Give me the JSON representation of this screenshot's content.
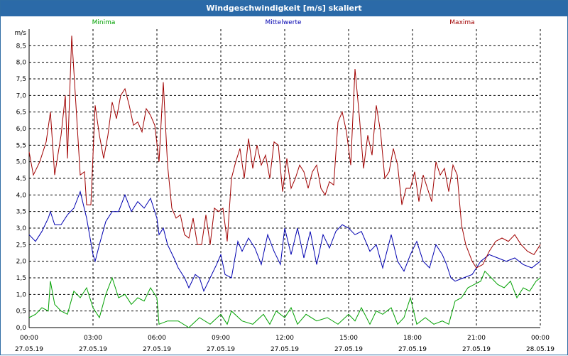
{
  "window": {
    "title": "Windgeschwindigkeit [m/s] skaliert"
  },
  "chart_data": {
    "type": "line",
    "title": "Windgeschwindigkeit [m/s] skaliert",
    "ylabel": "m/s",
    "ylim": [
      0,
      9
    ],
    "xlim": [
      0,
      24
    ],
    "y_ticks": [
      "0,0",
      "0,5",
      "1,0",
      "1,5",
      "2,0",
      "2,5",
      "3,0",
      "3,5",
      "4,0",
      "4,5",
      "5,0",
      "5,5",
      "6,0",
      "6,5",
      "7,0",
      "7,5",
      "8,0",
      "8,5"
    ],
    "x_ticks": [
      {
        "time": "00:00",
        "date": "27.05.19"
      },
      {
        "time": "03:00",
        "date": "27.05.19"
      },
      {
        "time": "06:00",
        "date": "27.05.19"
      },
      {
        "time": "09:00",
        "date": "27.05.19"
      },
      {
        "time": "12:00",
        "date": "27.05.19"
      },
      {
        "time": "15:00",
        "date": "27.05.19"
      },
      {
        "time": "18:00",
        "date": "27.05.19"
      },
      {
        "time": "21:00",
        "date": "27.05.19"
      },
      {
        "time": "00:00",
        "date": "28.05.19"
      }
    ],
    "grid": true,
    "legend_position": "top",
    "series": [
      {
        "name": "Minima",
        "color": "#00a000",
        "points": [
          [
            0,
            0.3
          ],
          [
            0.3,
            0.4
          ],
          [
            0.6,
            0.6
          ],
          [
            0.9,
            0.5
          ],
          [
            1.0,
            1.4
          ],
          [
            1.2,
            0.7
          ],
          [
            1.5,
            0.5
          ],
          [
            1.8,
            0.4
          ],
          [
            2.1,
            1.1
          ],
          [
            2.4,
            0.9
          ],
          [
            2.7,
            1.2
          ],
          [
            3.0,
            0.6
          ],
          [
            3.3,
            0.3
          ],
          [
            3.6,
            1.0
          ],
          [
            3.9,
            1.5
          ],
          [
            4.2,
            0.9
          ],
          [
            4.5,
            1.0
          ],
          [
            4.8,
            0.7
          ],
          [
            5.1,
            0.9
          ],
          [
            5.4,
            0.8
          ],
          [
            5.7,
            1.2
          ],
          [
            6.0,
            0.9
          ],
          [
            6.1,
            0.1
          ],
          [
            6.5,
            0.2
          ],
          [
            7.0,
            0.2
          ],
          [
            7.5,
            0.0
          ],
          [
            8.0,
            0.3
          ],
          [
            8.5,
            0.1
          ],
          [
            9.0,
            0.4
          ],
          [
            9.3,
            0.1
          ],
          [
            9.5,
            0.5
          ],
          [
            10.0,
            0.2
          ],
          [
            10.5,
            0.1
          ],
          [
            11.0,
            0.4
          ],
          [
            11.3,
            0.1
          ],
          [
            11.6,
            0.5
          ],
          [
            12.0,
            0.3
          ],
          [
            12.3,
            0.6
          ],
          [
            12.6,
            0.1
          ],
          [
            13.0,
            0.4
          ],
          [
            13.5,
            0.2
          ],
          [
            14.0,
            0.3
          ],
          [
            14.5,
            0.1
          ],
          [
            15.0,
            0.4
          ],
          [
            15.3,
            0.2
          ],
          [
            15.6,
            0.6
          ],
          [
            16.0,
            0.1
          ],
          [
            16.3,
            0.5
          ],
          [
            16.6,
            0.4
          ],
          [
            17.0,
            0.6
          ],
          [
            17.3,
            0.1
          ],
          [
            17.6,
            0.3
          ],
          [
            17.9,
            0.9
          ],
          [
            18.2,
            0.1
          ],
          [
            18.6,
            0.3
          ],
          [
            19.0,
            0.1
          ],
          [
            19.4,
            0.2
          ],
          [
            19.7,
            0.1
          ],
          [
            20.0,
            0.8
          ],
          [
            20.3,
            0.9
          ],
          [
            20.6,
            1.2
          ],
          [
            20.9,
            1.3
          ],
          [
            21.2,
            1.4
          ],
          [
            21.4,
            1.7
          ],
          [
            21.7,
            1.5
          ],
          [
            22.0,
            1.3
          ],
          [
            22.3,
            1.2
          ],
          [
            22.6,
            1.4
          ],
          [
            22.9,
            0.9
          ],
          [
            23.2,
            1.2
          ],
          [
            23.5,
            1.1
          ],
          [
            23.8,
            1.4
          ],
          [
            24.0,
            1.5
          ]
        ]
      },
      {
        "name": "Mittelwerte",
        "color": "#0000b0",
        "points": [
          [
            0,
            2.8
          ],
          [
            0.3,
            2.6
          ],
          [
            0.6,
            2.9
          ],
          [
            0.9,
            3.3
          ],
          [
            1.0,
            3.5
          ],
          [
            1.2,
            3.1
          ],
          [
            1.5,
            3.1
          ],
          [
            1.8,
            3.4
          ],
          [
            2.1,
            3.6
          ],
          [
            2.4,
            4.1
          ],
          [
            2.7,
            3.3
          ],
          [
            3.0,
            2.2
          ],
          [
            3.1,
            2.0
          ],
          [
            3.3,
            2.5
          ],
          [
            3.6,
            3.2
          ],
          [
            3.9,
            3.5
          ],
          [
            4.2,
            3.5
          ],
          [
            4.5,
            4.0
          ],
          [
            4.8,
            3.5
          ],
          [
            5.1,
            3.8
          ],
          [
            5.4,
            3.6
          ],
          [
            5.7,
            3.9
          ],
          [
            6.0,
            3.3
          ],
          [
            6.1,
            2.8
          ],
          [
            6.3,
            3.0
          ],
          [
            6.5,
            2.5
          ],
          [
            6.8,
            2.1
          ],
          [
            7.0,
            1.8
          ],
          [
            7.3,
            1.5
          ],
          [
            7.5,
            1.2
          ],
          [
            7.8,
            1.6
          ],
          [
            8.0,
            1.5
          ],
          [
            8.2,
            1.1
          ],
          [
            8.5,
            1.5
          ],
          [
            8.8,
            1.9
          ],
          [
            9.0,
            2.2
          ],
          [
            9.2,
            1.6
          ],
          [
            9.5,
            1.5
          ],
          [
            9.8,
            2.6
          ],
          [
            10.0,
            2.3
          ],
          [
            10.3,
            2.7
          ],
          [
            10.6,
            2.4
          ],
          [
            10.9,
            1.9
          ],
          [
            11.2,
            2.8
          ],
          [
            11.5,
            2.3
          ],
          [
            11.8,
            1.9
          ],
          [
            12.0,
            3.0
          ],
          [
            12.3,
            2.2
          ],
          [
            12.6,
            3.0
          ],
          [
            12.9,
            2.1
          ],
          [
            13.2,
            2.9
          ],
          [
            13.5,
            1.9
          ],
          [
            13.8,
            2.8
          ],
          [
            14.1,
            2.4
          ],
          [
            14.4,
            2.9
          ],
          [
            14.7,
            3.1
          ],
          [
            15.0,
            3.0
          ],
          [
            15.3,
            2.8
          ],
          [
            15.6,
            2.9
          ],
          [
            16.0,
            2.3
          ],
          [
            16.3,
            2.5
          ],
          [
            16.6,
            1.8
          ],
          [
            17.0,
            2.8
          ],
          [
            17.3,
            2.0
          ],
          [
            17.6,
            1.7
          ],
          [
            17.9,
            2.2
          ],
          [
            18.2,
            2.6
          ],
          [
            18.5,
            2.0
          ],
          [
            18.8,
            1.8
          ],
          [
            19.1,
            2.5
          ],
          [
            19.4,
            2.2
          ],
          [
            19.6,
            1.9
          ],
          [
            19.8,
            1.5
          ],
          [
            20.0,
            1.4
          ],
          [
            20.4,
            1.5
          ],
          [
            20.8,
            1.6
          ],
          [
            21.2,
            2.0
          ],
          [
            21.6,
            2.2
          ],
          [
            22.0,
            2.1
          ],
          [
            22.4,
            2.0
          ],
          [
            22.8,
            2.1
          ],
          [
            23.2,
            1.9
          ],
          [
            23.6,
            1.8
          ],
          [
            24.0,
            2.0
          ]
        ]
      },
      {
        "name": "Maxima",
        "color": "#a00000",
        "points": [
          [
            0,
            5.3
          ],
          [
            0.2,
            4.6
          ],
          [
            0.5,
            5.0
          ],
          [
            0.8,
            5.6
          ],
          [
            1.0,
            6.5
          ],
          [
            1.2,
            4.6
          ],
          [
            1.5,
            5.8
          ],
          [
            1.7,
            7.0
          ],
          [
            1.8,
            5.1
          ],
          [
            2.0,
            8.8
          ],
          [
            2.2,
            6.7
          ],
          [
            2.4,
            4.6
          ],
          [
            2.6,
            4.7
          ],
          [
            2.7,
            3.7
          ],
          [
            2.9,
            3.7
          ],
          [
            3.1,
            6.7
          ],
          [
            3.3,
            5.8
          ],
          [
            3.5,
            5.1
          ],
          [
            3.7,
            5.8
          ],
          [
            3.9,
            6.8
          ],
          [
            4.1,
            6.3
          ],
          [
            4.3,
            7.0
          ],
          [
            4.5,
            7.2
          ],
          [
            4.7,
            6.7
          ],
          [
            4.9,
            6.1
          ],
          [
            5.1,
            6.2
          ],
          [
            5.3,
            5.9
          ],
          [
            5.5,
            6.6
          ],
          [
            5.7,
            6.4
          ],
          [
            5.9,
            6.1
          ],
          [
            6.1,
            5.0
          ],
          [
            6.3,
            7.4
          ],
          [
            6.5,
            4.9
          ],
          [
            6.7,
            3.6
          ],
          [
            6.9,
            3.3
          ],
          [
            7.1,
            3.4
          ],
          [
            7.3,
            2.8
          ],
          [
            7.5,
            2.7
          ],
          [
            7.7,
            3.3
          ],
          [
            7.9,
            2.5
          ],
          [
            8.1,
            2.5
          ],
          [
            8.3,
            3.4
          ],
          [
            8.5,
            2.5
          ],
          [
            8.7,
            3.6
          ],
          [
            8.9,
            3.5
          ],
          [
            9.1,
            3.6
          ],
          [
            9.3,
            2.6
          ],
          [
            9.5,
            4.5
          ],
          [
            9.7,
            5.0
          ],
          [
            9.9,
            5.4
          ],
          [
            10.1,
            4.5
          ],
          [
            10.3,
            5.7
          ],
          [
            10.5,
            4.8
          ],
          [
            10.7,
            5.5
          ],
          [
            10.9,
            4.9
          ],
          [
            11.1,
            5.2
          ],
          [
            11.3,
            4.5
          ],
          [
            11.5,
            5.6
          ],
          [
            11.7,
            5.5
          ],
          [
            11.9,
            4.1
          ],
          [
            12.1,
            5.1
          ],
          [
            12.3,
            4.2
          ],
          [
            12.5,
            4.5
          ],
          [
            12.7,
            4.9
          ],
          [
            12.9,
            4.7
          ],
          [
            13.1,
            4.2
          ],
          [
            13.3,
            4.7
          ],
          [
            13.5,
            4.9
          ],
          [
            13.7,
            4.2
          ],
          [
            13.9,
            4.0
          ],
          [
            14.1,
            4.4
          ],
          [
            14.3,
            4.3
          ],
          [
            14.5,
            6.2
          ],
          [
            14.7,
            6.5
          ],
          [
            14.9,
            5.9
          ],
          [
            15.1,
            4.9
          ],
          [
            15.3,
            7.8
          ],
          [
            15.5,
            6.4
          ],
          [
            15.7,
            4.8
          ],
          [
            15.9,
            5.8
          ],
          [
            16.1,
            5.2
          ],
          [
            16.3,
            6.7
          ],
          [
            16.5,
            5.9
          ],
          [
            16.7,
            4.5
          ],
          [
            16.9,
            4.7
          ],
          [
            17.1,
            5.4
          ],
          [
            17.3,
            4.9
          ],
          [
            17.5,
            3.7
          ],
          [
            17.7,
            4.2
          ],
          [
            17.9,
            4.2
          ],
          [
            18.1,
            4.7
          ],
          [
            18.3,
            3.8
          ],
          [
            18.5,
            4.6
          ],
          [
            18.7,
            4.2
          ],
          [
            18.9,
            3.8
          ],
          [
            19.1,
            5.0
          ],
          [
            19.3,
            4.6
          ],
          [
            19.5,
            4.8
          ],
          [
            19.7,
            4.1
          ],
          [
            19.9,
            4.9
          ],
          [
            20.1,
            4.6
          ],
          [
            20.3,
            3.1
          ],
          [
            20.5,
            2.5
          ],
          [
            20.8,
            2.0
          ],
          [
            21.0,
            1.8
          ],
          [
            21.3,
            1.9
          ],
          [
            21.6,
            2.3
          ],
          [
            21.9,
            2.6
          ],
          [
            22.2,
            2.7
          ],
          [
            22.5,
            2.6
          ],
          [
            22.8,
            2.8
          ],
          [
            23.1,
            2.5
          ],
          [
            23.4,
            2.3
          ],
          [
            23.7,
            2.2
          ],
          [
            24.0,
            2.5
          ]
        ]
      }
    ]
  }
}
